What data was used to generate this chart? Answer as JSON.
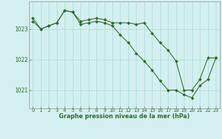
{
  "line1_x": [
    0,
    1,
    2,
    3,
    4,
    5,
    6,
    7,
    8,
    9,
    10,
    11,
    12,
    13,
    14,
    15,
    16,
    17,
    18,
    19,
    20,
    21,
    22,
    23
  ],
  "line1_y": [
    1023.35,
    1023.0,
    1023.1,
    1023.2,
    1023.6,
    1023.55,
    1023.25,
    1023.3,
    1023.35,
    1023.3,
    1023.2,
    1023.2,
    1023.2,
    1023.15,
    1023.2,
    1022.85,
    1022.55,
    1022.3,
    1021.95,
    1021.0,
    1021.0,
    1021.35,
    1022.05,
    1022.05
  ],
  "line2_x": [
    0,
    1,
    2,
    3,
    4,
    5,
    6,
    7,
    8,
    9,
    10,
    11,
    12,
    13,
    14,
    15,
    16,
    17,
    18,
    19,
    20,
    21,
    22,
    23
  ],
  "line2_y": [
    1023.25,
    1023.0,
    1023.1,
    1023.2,
    1023.6,
    1023.55,
    1023.15,
    1023.2,
    1023.25,
    1023.2,
    1023.1,
    1022.8,
    1022.55,
    1022.2,
    1021.95,
    1021.65,
    1021.3,
    1021.0,
    1021.0,
    1020.85,
    1020.75,
    1021.15,
    1021.35,
    1022.05
  ],
  "line_color": "#2d6a2d",
  "bg_color": "#d4efef",
  "grid_color": "#a8d8d8",
  "ylabel_values": [
    1021,
    1022,
    1023
  ],
  "xlabel": "Graphe pression niveau de la mer (hPa)",
  "ylim_min": 1020.4,
  "ylim_max": 1023.9,
  "xticks": [
    0,
    1,
    2,
    3,
    4,
    5,
    6,
    7,
    8,
    9,
    10,
    11,
    12,
    13,
    14,
    15,
    16,
    17,
    18,
    19,
    20,
    21,
    22,
    23
  ],
  "marker": "D",
  "markersize": 2.0,
  "linewidth": 0.8,
  "tick_fontsize": 5.0,
  "xlabel_fontsize": 6.0,
  "ylabel_fontsize": 5.5
}
